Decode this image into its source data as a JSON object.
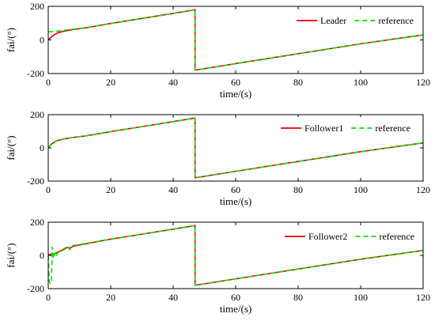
{
  "chart_data": [
    {
      "type": "line",
      "xlabel": "time/(s)",
      "ylabel": "fai/(°)",
      "xlim": [
        0,
        120
      ],
      "ylim": [
        -200,
        200
      ],
      "xticks": [
        0,
        20,
        40,
        60,
        80,
        100,
        120
      ],
      "yticks": [
        -200,
        0,
        200
      ],
      "xtick_labels": [
        "0",
        "20",
        "40",
        "60",
        "80",
        "100",
        "120"
      ],
      "ytick_labels": [
        "-200",
        "0",
        "200"
      ],
      "grid": false,
      "legend": "top-right",
      "series": [
        {
          "name": "Leader",
          "style": "solid",
          "color": "#e60000",
          "x": [
            0,
            0.5,
            1,
            2,
            3,
            5,
            8,
            12,
            20,
            30,
            40,
            47,
            47,
            60,
            80,
            100,
            120
          ],
          "y": [
            0,
            10,
            18,
            32,
            42,
            52,
            62,
            72,
            98,
            128,
            158,
            180,
            -180,
            -141,
            -82,
            -23,
            30
          ]
        },
        {
          "name": "reference",
          "style": "dashed",
          "color": "#00e600",
          "x": [
            0,
            2,
            4,
            6,
            8,
            12,
            20,
            30,
            40,
            47,
            47,
            60,
            80,
            100,
            120
          ],
          "y": [
            48,
            50,
            55,
            60,
            64,
            72,
            98,
            128,
            158,
            180,
            -180,
            -141,
            -82,
            -23,
            30
          ]
        }
      ]
    },
    {
      "type": "line",
      "xlabel": "time/(s)",
      "ylabel": "fai/(°)",
      "xlim": [
        0,
        120
      ],
      "ylim": [
        -200,
        200
      ],
      "xticks": [
        0,
        20,
        40,
        60,
        80,
        100,
        120
      ],
      "yticks": [
        -200,
        0,
        200
      ],
      "xtick_labels": [
        "0",
        "20",
        "40",
        "60",
        "80",
        "100",
        "120"
      ],
      "ytick_labels": [
        "-200",
        "0",
        "200"
      ],
      "grid": false,
      "legend": "top-right",
      "series": [
        {
          "name": "Follower1",
          "style": "solid",
          "color": "#e60000",
          "x": [
            0,
            0.5,
            1,
            2,
            3,
            5,
            8,
            12,
            20,
            30,
            40,
            47,
            47,
            60,
            80,
            100,
            120
          ],
          "y": [
            0,
            12,
            22,
            35,
            44,
            54,
            63,
            72,
            98,
            128,
            158,
            180,
            -180,
            -141,
            -82,
            -23,
            30
          ]
        },
        {
          "name": "reference",
          "style": "dashed",
          "color": "#00e600",
          "x": [
            0,
            0.5,
            1,
            2,
            3,
            5,
            8,
            12,
            20,
            30,
            40,
            47,
            47,
            60,
            80,
            100,
            120
          ],
          "y": [
            0,
            14,
            25,
            37,
            45,
            55,
            63,
            72,
            98,
            128,
            158,
            180,
            -180,
            -141,
            -82,
            -23,
            30
          ]
        }
      ]
    },
    {
      "type": "line",
      "xlabel": "time/(s)",
      "ylabel": "fai/(°)",
      "xlim": [
        0,
        120
      ],
      "ylim": [
        -200,
        200
      ],
      "xticks": [
        0,
        20,
        40,
        60,
        80,
        100,
        120
      ],
      "yticks": [
        -200,
        0,
        200
      ],
      "xtick_labels": [
        "0",
        "20",
        "40",
        "60",
        "80",
        "100",
        "120"
      ],
      "ytick_labels": [
        "-200",
        "0",
        "200"
      ],
      "grid": false,
      "legend": "top-right",
      "series": [
        {
          "name": "Follower2",
          "style": "solid",
          "color": "#e60000",
          "x": [
            0,
            0.5,
            1,
            1.5,
            2,
            3,
            4,
            5,
            6,
            7,
            8,
            10,
            12,
            20,
            30,
            40,
            47,
            47,
            60,
            80,
            100,
            120
          ],
          "y": [
            0,
            5,
            8,
            5,
            10,
            20,
            28,
            35,
            48,
            45,
            55,
            63,
            70,
            98,
            128,
            158,
            180,
            -180,
            -141,
            -82,
            -23,
            30
          ]
        },
        {
          "name": "reference",
          "style": "dashed",
          "color": "#00e600",
          "x": [
            0,
            0.3,
            0.6,
            1,
            1.3,
            1.6,
            2,
            2.5,
            3,
            4,
            5,
            6,
            7,
            8,
            10,
            12,
            20,
            30,
            40,
            47,
            47,
            60,
            80,
            100,
            120
          ],
          "y": [
            0,
            -150,
            -170,
            -160,
            50,
            -20,
            10,
            -10,
            15,
            30,
            40,
            55,
            35,
            60,
            66,
            72,
            98,
            128,
            158,
            180,
            -180,
            -141,
            -82,
            -23,
            30
          ]
        }
      ]
    }
  ]
}
